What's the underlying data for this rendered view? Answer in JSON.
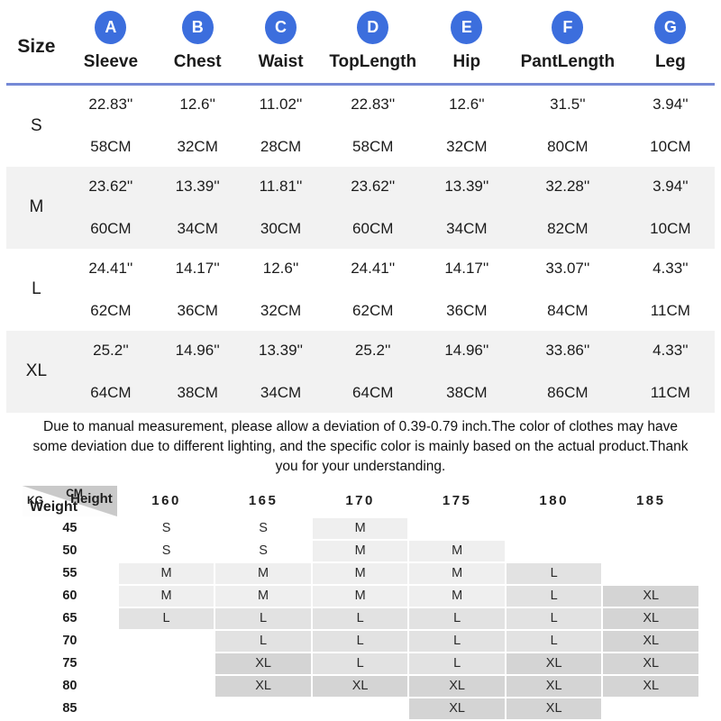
{
  "colors": {
    "accent_blue": "#3c6edd",
    "divider_blue": "#7589d6",
    "row_stripe": "#f2f2f2",
    "cell_m": "#efefef",
    "cell_l": "#e2e2e2",
    "cell_xl": "#d4d4d4",
    "corner_gray": "#c9c9c9"
  },
  "size_table": {
    "size_col_label": "Size",
    "columns": [
      {
        "letter": "A",
        "label": "Sleeve"
      },
      {
        "letter": "B",
        "label": "Chest"
      },
      {
        "letter": "C",
        "label": "Waist"
      },
      {
        "letter": "D",
        "label": "TopLength"
      },
      {
        "letter": "E",
        "label": "Hip"
      },
      {
        "letter": "F",
        "label": "PantLength"
      },
      {
        "letter": "G",
        "label": "Leg"
      }
    ],
    "rows": [
      {
        "size": "S",
        "inch": [
          "22.83''",
          "12.6''",
          "11.02''",
          "22.83''",
          "12.6''",
          "31.5''",
          "3.94''"
        ],
        "cm": [
          "58CM",
          "32CM",
          "28CM",
          "58CM",
          "32CM",
          "80CM",
          "10CM"
        ]
      },
      {
        "size": "M",
        "inch": [
          "23.62''",
          "13.39''",
          "11.81''",
          "23.62''",
          "13.39''",
          "32.28''",
          "3.94''"
        ],
        "cm": [
          "60CM",
          "34CM",
          "30CM",
          "60CM",
          "34CM",
          "82CM",
          "10CM"
        ]
      },
      {
        "size": "L",
        "inch": [
          "24.41''",
          "14.17''",
          "12.6''",
          "24.41''",
          "14.17''",
          "33.07''",
          "4.33''"
        ],
        "cm": [
          "62CM",
          "36CM",
          "32CM",
          "62CM",
          "36CM",
          "84CM",
          "11CM"
        ]
      },
      {
        "size": "XL",
        "inch": [
          "25.2''",
          "14.96''",
          "13.39''",
          "25.2''",
          "14.96''",
          "33.86''",
          "4.33''"
        ],
        "cm": [
          "64CM",
          "38CM",
          "34CM",
          "64CM",
          "38CM",
          "86CM",
          "11CM"
        ]
      }
    ]
  },
  "disclaimer": "Due to manual measurement, please allow a deviation of 0.39-0.79 inch.The color of clothes may have some deviation due to different lighting, and the specific color is mainly based on the actual product.Thank you for your understanding.",
  "fit_table": {
    "corner": {
      "kg": "KG",
      "cm": "CM",
      "height": "Height",
      "weight": "Weight"
    },
    "heights": [
      "160",
      "165",
      "170",
      "175",
      "180",
      "185"
    ],
    "rows": [
      {
        "weight": "45",
        "cells": [
          "S",
          "S",
          "M",
          "",
          "",
          ""
        ]
      },
      {
        "weight": "50",
        "cells": [
          "S",
          "S",
          "M",
          "M",
          "",
          ""
        ]
      },
      {
        "weight": "55",
        "cells": [
          "M",
          "M",
          "M",
          "M",
          "L",
          ""
        ]
      },
      {
        "weight": "60",
        "cells": [
          "M",
          "M",
          "M",
          "M",
          "L",
          "XL"
        ]
      },
      {
        "weight": "65",
        "cells": [
          "L",
          "L",
          "L",
          "L",
          "L",
          "XL"
        ]
      },
      {
        "weight": "70",
        "cells": [
          "",
          "L",
          "L",
          "L",
          "L",
          "XL"
        ]
      },
      {
        "weight": "75",
        "cells": [
          "",
          "XL",
          "L",
          "L",
          "XL",
          "XL"
        ]
      },
      {
        "weight": "80",
        "cells": [
          "",
          "XL",
          "XL",
          "XL",
          "XL",
          "XL"
        ]
      },
      {
        "weight": "85",
        "cells": [
          "",
          "",
          "",
          "XL",
          "XL",
          ""
        ]
      }
    ]
  }
}
